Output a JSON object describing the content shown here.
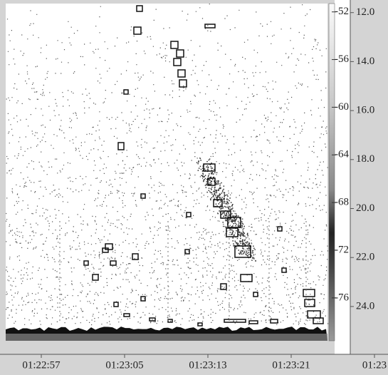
{
  "chart_data": {
    "type": "echogram",
    "xticks": [
      "01:22:57",
      "01:23:05",
      "01:23:13",
      "01:23:21",
      "01:23"
    ],
    "ylim": [
      11.63,
      25.4
    ],
    "yticks": [
      {
        "value": 12,
        "label": "12.0"
      },
      {
        "value": 14,
        "label": "14.0"
      },
      {
        "value": 16,
        "label": "16.0"
      },
      {
        "value": 18,
        "label": "18.0"
      },
      {
        "value": 20,
        "label": "20.0"
      },
      {
        "value": 22,
        "label": "22.0"
      },
      {
        "value": 24,
        "label": "24.0"
      }
    ],
    "colorbar_lim": [
      -51.3,
      -79.6
    ],
    "colorbar_ticks": [
      -52,
      -56,
      -60,
      -64,
      -68,
      -72,
      -76
    ]
  }
}
